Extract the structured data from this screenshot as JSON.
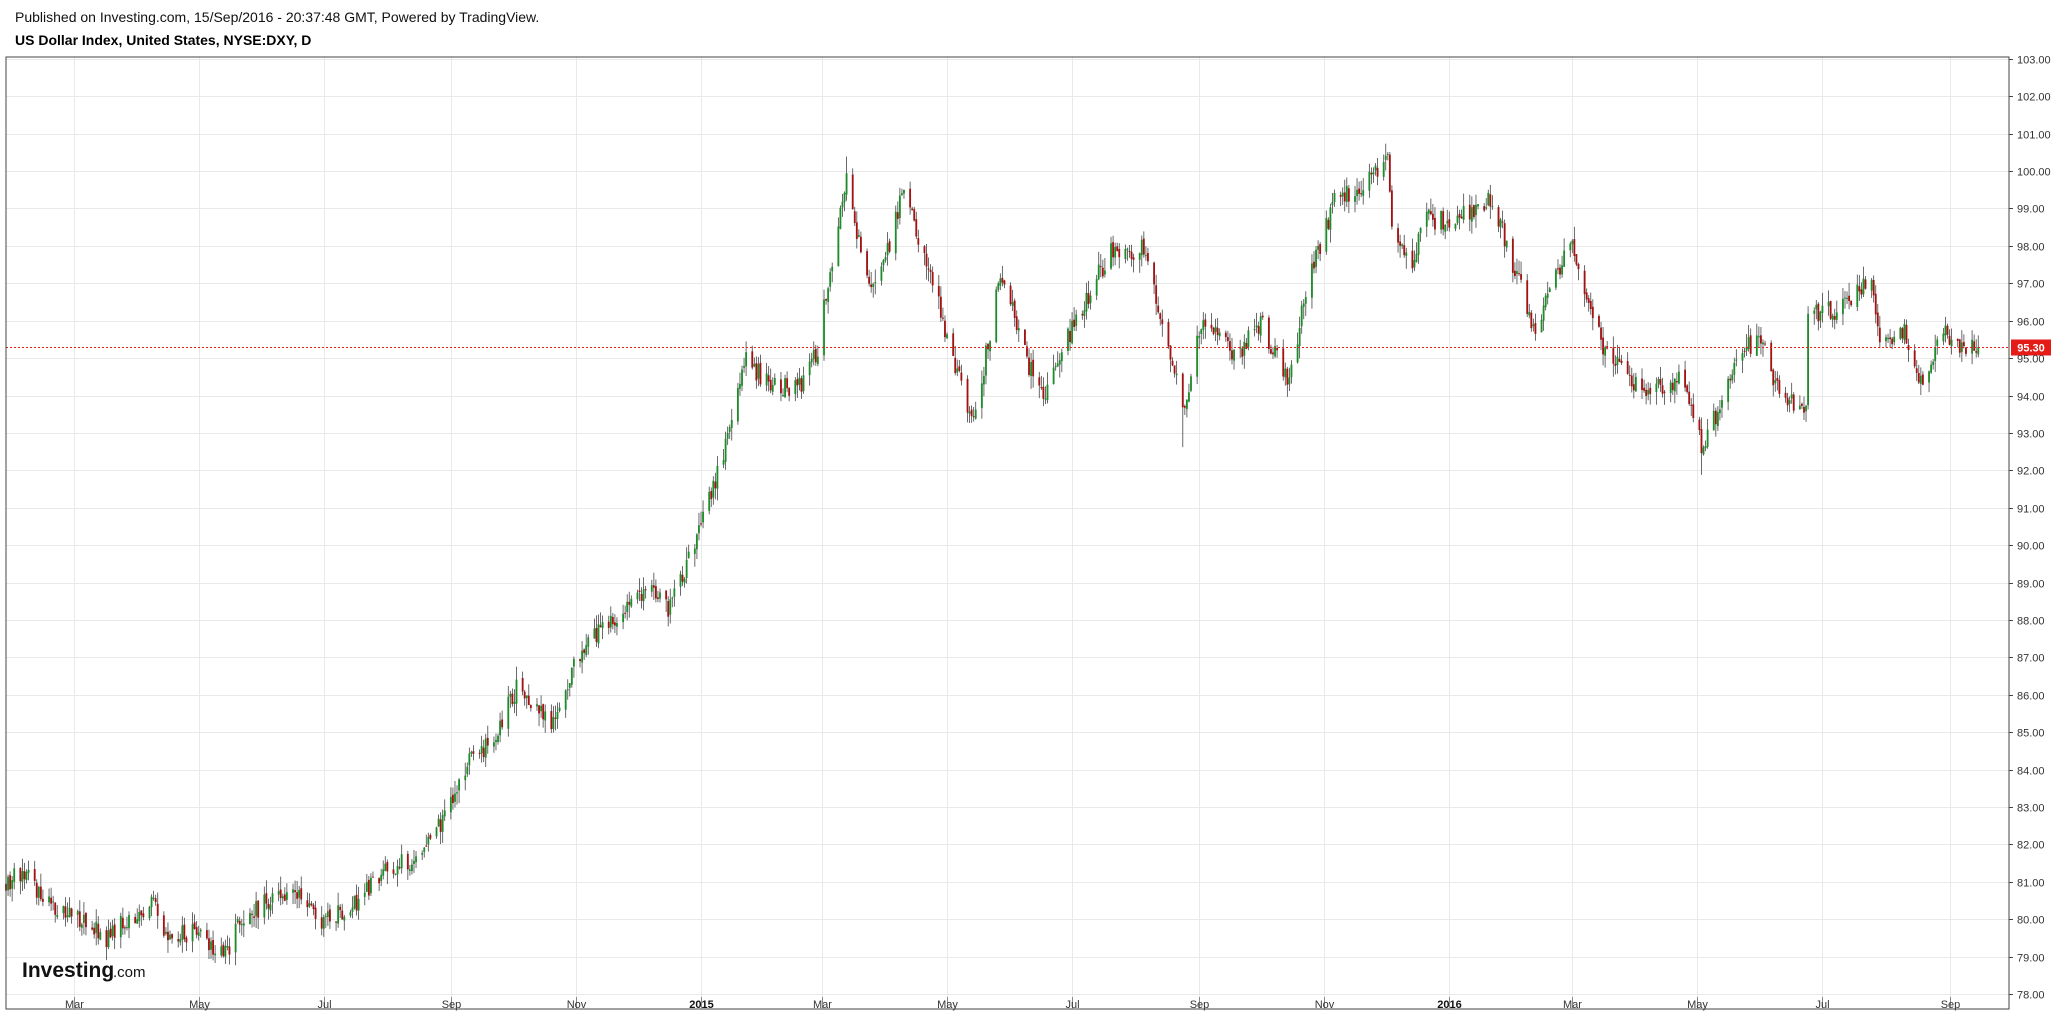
{
  "header": {
    "published": "Published on Investing.com, 15/Sep/2016 - 20:37:48 GMT, Powered by TradingView.",
    "symbol": "US Dollar Index, United States, NYSE:DXY, D"
  },
  "logo": {
    "main": "Investing",
    "suffix": ".com"
  },
  "colors": {
    "up": "#1e8c2a",
    "down": "#a11212",
    "wick": "#444444",
    "grid": "#e9e9e9",
    "frame": "#444444",
    "last_price_line": "#e41b17",
    "last_price_bg": "#e41b17"
  },
  "chart_data": {
    "type": "candlestick",
    "title": "US Dollar Index, United States, NYSE:DXY, D",
    "interval": "D",
    "x_range": [
      "2014-01-27",
      "2016-09-30"
    ],
    "ylim": [
      77.6,
      103.05
    ],
    "y_axis_position": "right",
    "grid": true,
    "y_ticks": [
      "78.00",
      "79.00",
      "80.00",
      "81.00",
      "82.00",
      "83.00",
      "84.00",
      "85.00",
      "86.00",
      "87.00",
      "88.00",
      "89.00",
      "90.00",
      "91.00",
      "92.00",
      "93.00",
      "94.00",
      "95.00",
      "96.00",
      "97.00",
      "98.00",
      "99.00",
      "100.00",
      "101.00",
      "102.00",
      "103.00"
    ],
    "x_ticks": [
      {
        "date": "2014-03-01",
        "label": "Mar",
        "bold": false
      },
      {
        "date": "2014-05-01",
        "label": "May",
        "bold": false
      },
      {
        "date": "2014-07-01",
        "label": "Jul",
        "bold": false
      },
      {
        "date": "2014-09-01",
        "label": "Sep",
        "bold": false
      },
      {
        "date": "2014-11-01",
        "label": "Nov",
        "bold": false
      },
      {
        "date": "2015-01-01",
        "label": "2015",
        "bold": true
      },
      {
        "date": "2015-03-01",
        "label": "Mar",
        "bold": false
      },
      {
        "date": "2015-05-01",
        "label": "May",
        "bold": false
      },
      {
        "date": "2015-07-01",
        "label": "Jul",
        "bold": false
      },
      {
        "date": "2015-09-01",
        "label": "Sep",
        "bold": false
      },
      {
        "date": "2015-11-01",
        "label": "Nov",
        "bold": false
      },
      {
        "date": "2016-01-01",
        "label": "2016",
        "bold": true
      },
      {
        "date": "2016-03-01",
        "label": "Mar",
        "bold": false
      },
      {
        "date": "2016-05-01",
        "label": "May",
        "bold": false
      },
      {
        "date": "2016-07-01",
        "label": "Jul",
        "bold": false
      },
      {
        "date": "2016-09-01",
        "label": "Sep",
        "bold": false
      }
    ],
    "first_date": "2014-01-27",
    "last_date": "2016-09-15",
    "close_path": [
      {
        "date": "2014-01-27",
        "close": 81.0
      },
      {
        "date": "2014-02-05",
        "close": 81.2
      },
      {
        "date": "2014-02-20",
        "close": 80.2
      },
      {
        "date": "2014-03-05",
        "close": 80.0
      },
      {
        "date": "2014-03-17",
        "close": 79.5
      },
      {
        "date": "2014-04-01",
        "close": 80.2
      },
      {
        "date": "2014-04-10",
        "close": 80.4
      },
      {
        "date": "2014-04-17",
        "close": 79.4
      },
      {
        "date": "2014-04-30",
        "close": 79.8
      },
      {
        "date": "2014-05-08",
        "close": 79.3
      },
      {
        "date": "2014-05-15",
        "close": 79.1
      },
      {
        "date": "2014-05-22",
        "close": 80.0
      },
      {
        "date": "2014-06-05",
        "close": 80.5
      },
      {
        "date": "2014-06-18",
        "close": 80.8
      },
      {
        "date": "2014-06-30",
        "close": 79.9
      },
      {
        "date": "2014-07-15",
        "close": 80.3
      },
      {
        "date": "2014-07-31",
        "close": 81.4
      },
      {
        "date": "2014-08-15",
        "close": 81.6
      },
      {
        "date": "2014-08-29",
        "close": 82.7
      },
      {
        "date": "2014-09-10",
        "close": 84.2
      },
      {
        "date": "2014-09-22",
        "close": 84.8
      },
      {
        "date": "2014-10-03",
        "close": 86.2
      },
      {
        "date": "2014-10-10",
        "close": 85.8
      },
      {
        "date": "2014-10-20",
        "close": 85.1
      },
      {
        "date": "2014-10-31",
        "close": 86.8
      },
      {
        "date": "2014-11-10",
        "close": 87.6
      },
      {
        "date": "2014-11-24",
        "close": 88.2
      },
      {
        "date": "2014-12-08",
        "close": 89.0
      },
      {
        "date": "2014-12-16",
        "close": 88.3
      },
      {
        "date": "2014-12-31",
        "close": 90.3
      },
      {
        "date": "2015-01-09",
        "close": 91.9
      },
      {
        "date": "2015-01-23",
        "close": 94.9
      },
      {
        "date": "2015-02-06",
        "close": 94.2
      },
      {
        "date": "2015-02-20",
        "close": 94.3
      },
      {
        "date": "2015-02-27",
        "close": 95.3
      },
      {
        "date": "2015-03-06",
        "close": 97.7
      },
      {
        "date": "2015-03-13",
        "close": 100.0
      },
      {
        "date": "2015-03-18",
        "close": 98.2
      },
      {
        "date": "2015-03-26",
        "close": 96.9
      },
      {
        "date": "2015-04-02",
        "close": 97.8
      },
      {
        "date": "2015-04-10",
        "close": 99.5
      },
      {
        "date": "2015-04-22",
        "close": 97.4
      },
      {
        "date": "2015-05-04",
        "close": 95.0
      },
      {
        "date": "2015-05-14",
        "close": 93.2
      },
      {
        "date": "2015-05-27",
        "close": 97.3
      },
      {
        "date": "2015-06-10",
        "close": 94.8
      },
      {
        "date": "2015-06-18",
        "close": 94.0
      },
      {
        "date": "2015-07-01",
        "close": 95.8
      },
      {
        "date": "2015-07-20",
        "close": 97.9
      },
      {
        "date": "2015-08-06",
        "close": 97.9
      },
      {
        "date": "2015-08-24",
        "close": 93.6
      },
      {
        "date": "2015-09-03",
        "close": 96.1
      },
      {
        "date": "2015-09-18",
        "close": 95.0
      },
      {
        "date": "2015-10-01",
        "close": 96.0
      },
      {
        "date": "2015-10-15",
        "close": 94.3
      },
      {
        "date": "2015-10-23",
        "close": 96.8
      },
      {
        "date": "2015-11-06",
        "close": 99.2
      },
      {
        "date": "2015-11-20",
        "close": 99.6
      },
      {
        "date": "2015-12-02",
        "close": 100.2
      },
      {
        "date": "2015-12-04",
        "close": 98.3
      },
      {
        "date": "2015-12-14",
        "close": 97.6
      },
      {
        "date": "2015-12-21",
        "close": 98.7
      },
      {
        "date": "2016-01-04",
        "close": 98.7
      },
      {
        "date": "2016-01-22",
        "close": 99.3
      },
      {
        "date": "2016-02-03",
        "close": 97.2
      },
      {
        "date": "2016-02-11",
        "close": 95.7
      },
      {
        "date": "2016-02-29",
        "close": 98.2
      },
      {
        "date": "2016-03-11",
        "close": 96.2
      },
      {
        "date": "2016-03-17",
        "close": 95.1
      },
      {
        "date": "2016-04-04",
        "close": 94.2
      },
      {
        "date": "2016-04-25",
        "close": 94.4
      },
      {
        "date": "2016-05-03",
        "close": 92.6
      },
      {
        "date": "2016-05-24",
        "close": 95.3
      },
      {
        "date": "2016-06-01",
        "close": 95.5
      },
      {
        "date": "2016-06-10",
        "close": 94.0
      },
      {
        "date": "2016-06-23",
        "close": 93.6
      },
      {
        "date": "2016-06-24",
        "close": 96.1
      },
      {
        "date": "2016-07-08",
        "close": 96.3
      },
      {
        "date": "2016-07-25",
        "close": 97.2
      },
      {
        "date": "2016-07-29",
        "close": 95.5
      },
      {
        "date": "2016-08-10",
        "close": 95.8
      },
      {
        "date": "2016-08-18",
        "close": 94.3
      },
      {
        "date": "2016-08-30",
        "close": 95.8
      },
      {
        "date": "2016-09-06",
        "close": 95.2
      },
      {
        "date": "2016-09-15",
        "close": 95.3
      }
    ],
    "extremes": [
      {
        "date": "2014-05-08",
        "low": 78.9
      },
      {
        "date": "2015-03-13",
        "high": 100.39
      },
      {
        "date": "2015-08-24",
        "low": 92.62
      },
      {
        "date": "2015-12-02",
        "high": 100.51
      },
      {
        "date": "2016-05-03",
        "low": 91.88
      }
    ],
    "last_price": 95.3,
    "last_price_label": "95.30"
  }
}
